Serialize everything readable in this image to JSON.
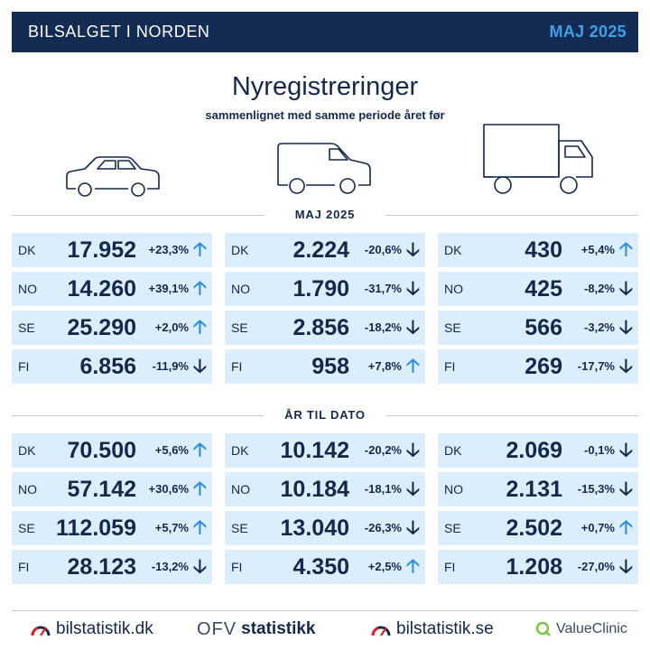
{
  "header": {
    "title": "BILSALGET I NORDEN",
    "date": "MAJ 2025"
  },
  "heading": "Nyregistreringer",
  "subheading": "sammenlignet med samme periode året før",
  "vehicles": [
    "car-icon",
    "van-icon",
    "truck-icon"
  ],
  "sections": {
    "month": {
      "label": "MAJ 2025",
      "columns": [
        {
          "vehicle": "car",
          "rows": [
            {
              "country": "DK",
              "value": "17.952",
              "change": "+23,3%",
              "dir": "up"
            },
            {
              "country": "NO",
              "value": "14.260",
              "change": "+39,1%",
              "dir": "up"
            },
            {
              "country": "SE",
              "value": "25.290",
              "change": "+2,0%",
              "dir": "up"
            },
            {
              "country": "FI",
              "value": "6.856",
              "change": "-11,9%",
              "dir": "down"
            }
          ]
        },
        {
          "vehicle": "van",
          "rows": [
            {
              "country": "DK",
              "value": "2.224",
              "change": "-20,6%",
              "dir": "down"
            },
            {
              "country": "NO",
              "value": "1.790",
              "change": "-31,7%",
              "dir": "down"
            },
            {
              "country": "SE",
              "value": "2.856",
              "change": "-18,2%",
              "dir": "down"
            },
            {
              "country": "FI",
              "value": "958",
              "change": "+7,8%",
              "dir": "up"
            }
          ]
        },
        {
          "vehicle": "truck",
          "rows": [
            {
              "country": "DK",
              "value": "430",
              "change": "+5,4%",
              "dir": "up"
            },
            {
              "country": "NO",
              "value": "425",
              "change": "-8,2%",
              "dir": "down"
            },
            {
              "country": "SE",
              "value": "566",
              "change": "-3,2%",
              "dir": "down"
            },
            {
              "country": "FI",
              "value": "269",
              "change": "-17,7%",
              "dir": "down"
            }
          ]
        }
      ]
    },
    "ytd": {
      "label": "ÅR TIL DATO",
      "columns": [
        {
          "vehicle": "car",
          "rows": [
            {
              "country": "DK",
              "value": "70.500",
              "change": "+5,6%",
              "dir": "up"
            },
            {
              "country": "NO",
              "value": "57.142",
              "change": "+30,6%",
              "dir": "up"
            },
            {
              "country": "SE",
              "value": "112.059",
              "change": "+5,7%",
              "dir": "up"
            },
            {
              "country": "FI",
              "value": "28.123",
              "change": "-13,2%",
              "dir": "down"
            }
          ]
        },
        {
          "vehicle": "van",
          "rows": [
            {
              "country": "DK",
              "value": "10.142",
              "change": "-20,2%",
              "dir": "down"
            },
            {
              "country": "NO",
              "value": "10.184",
              "change": "-18,1%",
              "dir": "down"
            },
            {
              "country": "SE",
              "value": "13.040",
              "change": "-26,3%",
              "dir": "down"
            },
            {
              "country": "FI",
              "value": "4.350",
              "change": "+2,5%",
              "dir": "up"
            }
          ]
        },
        {
          "vehicle": "truck",
          "rows": [
            {
              "country": "DK",
              "value": "2.069",
              "change": "-0,1%",
              "dir": "down"
            },
            {
              "country": "NO",
              "value": "2.131",
              "change": "-15,3%",
              "dir": "down"
            },
            {
              "country": "SE",
              "value": "2.502",
              "change": "+0,7%",
              "dir": "up"
            },
            {
              "country": "FI",
              "value": "1.208",
              "change": "-27,0%",
              "dir": "down"
            }
          ]
        }
      ]
    }
  },
  "arrows": {
    "up": "🡡",
    "down": "🡣"
  },
  "colors": {
    "navy": "#142b54",
    "accent": "#3ea0e6",
    "cell": "#dceefb",
    "up": "#2a8de0",
    "down": "#14284b"
  },
  "footer": {
    "logos": [
      {
        "name": "bilstatistik-dk-logo",
        "text": "bilstatistik.dk"
      },
      {
        "name": "ofv-statistikk-logo",
        "mark": "OFV",
        "text": "statistikk"
      },
      {
        "name": "bilstatistik-se-logo",
        "text": "bilstatistik.se"
      },
      {
        "name": "valueclinic-logo",
        "text": "ValueClinic"
      }
    ]
  }
}
